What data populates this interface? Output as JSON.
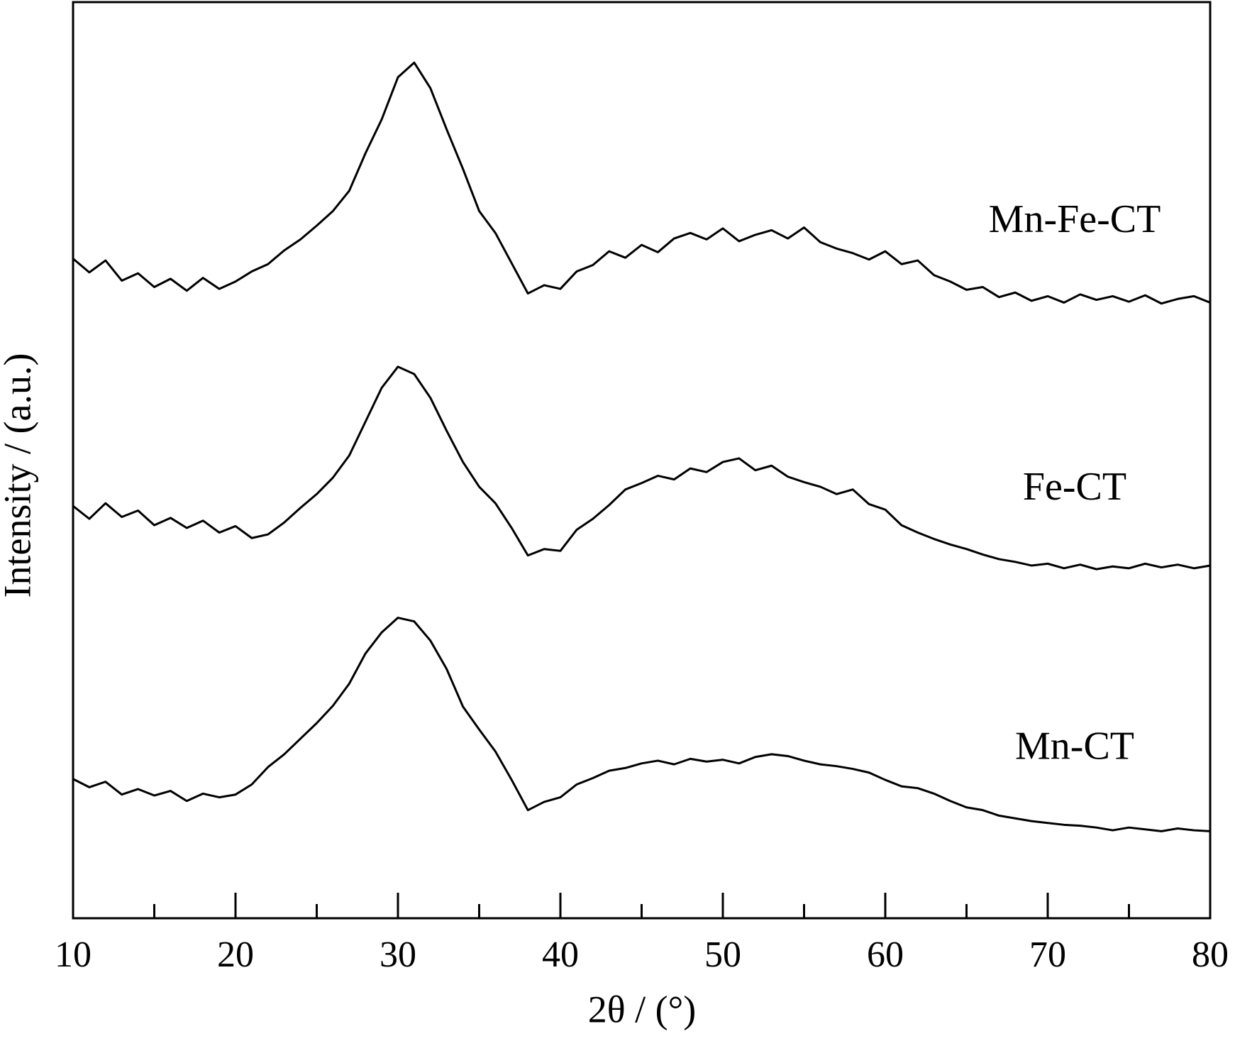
{
  "chart_data": {
    "type": "line",
    "xlabel": "2θ / (°)",
    "ylabel": "Intensity / (a.u.)",
    "xlim": [
      10,
      80
    ],
    "ylim": [
      0,
      100
    ],
    "xticks": [
      10,
      20,
      30,
      40,
      50,
      60,
      70,
      80
    ],
    "xminorticks": [
      15,
      25,
      35,
      45,
      55,
      65,
      75
    ],
    "x": [
      10,
      11,
      12,
      13,
      14,
      15,
      16,
      17,
      18,
      19,
      20,
      21,
      22,
      23,
      24,
      25,
      26,
      27,
      28,
      29,
      30,
      31,
      32,
      33,
      34,
      35,
      36,
      37,
      38,
      39,
      40,
      41,
      42,
      43,
      44,
      45,
      46,
      47,
      48,
      49,
      50,
      51,
      52,
      53,
      54,
      55,
      56,
      57,
      58,
      59,
      60,
      61,
      62,
      63,
      64,
      65,
      66,
      67,
      68,
      69,
      70,
      71,
      72,
      73,
      74,
      75,
      76,
      77,
      78,
      79,
      80
    ],
    "series": [
      {
        "name": "Mn-Fe-CT",
        "color": "#000000",
        "values": [
          72,
          70.5,
          71.8,
          69.6,
          70.4,
          68.9,
          69.8,
          68.5,
          69.9,
          68.7,
          69.5,
          70.6,
          71.4,
          72.9,
          74.1,
          75.6,
          77.2,
          79.4,
          83.5,
          87.2,
          91.8,
          93.4,
          90.6,
          86.1,
          81.8,
          77.2,
          74.8,
          71.5,
          68.2,
          69.1,
          68.7,
          70.6,
          71.3,
          72.8,
          72.1,
          73.5,
          72.7,
          74.2,
          74.8,
          74.1,
          75.3,
          73.9,
          74.6,
          75.1,
          74.2,
          75.4,
          73.8,
          73.1,
          72.6,
          71.9,
          72.8,
          71.4,
          71.8,
          70.2,
          69.5,
          68.6,
          68.9,
          67.8,
          68.3,
          67.4,
          67.9,
          67.2,
          68.1,
          67.5,
          67.9,
          67.3,
          68,
          67.1,
          67.6,
          67.9,
          67.2
        ]
      },
      {
        "name": "Fe-CT",
        "color": "#000000",
        "values": [
          45,
          43.6,
          45.3,
          43.8,
          44.5,
          42.9,
          43.7,
          42.6,
          43.4,
          42.1,
          42.8,
          41.5,
          41.9,
          43.2,
          44.8,
          46.3,
          48.1,
          50.5,
          54.2,
          57.9,
          60.2,
          59.4,
          56.8,
          53.2,
          49.8,
          47.1,
          45.3,
          42.6,
          39.6,
          40.3,
          40.1,
          42.4,
          43.6,
          45.1,
          46.8,
          47.5,
          48.3,
          47.9,
          49.1,
          48.7,
          49.8,
          50.2,
          48.9,
          49.4,
          48.2,
          47.6,
          47.1,
          46.3,
          46.8,
          45.2,
          44.6,
          42.9,
          42.1,
          41.4,
          40.8,
          40.3,
          39.7,
          39.2,
          38.9,
          38.5,
          38.7,
          38.2,
          38.6,
          38.1,
          38.4,
          38.2,
          38.7,
          38.3,
          38.6,
          38.2,
          38.5
        ]
      },
      {
        "name": "Mn-CT",
        "color": "#000000",
        "values": [
          15.2,
          14.3,
          14.9,
          13.5,
          14.1,
          13.4,
          13.9,
          12.8,
          13.6,
          13.2,
          13.5,
          14.6,
          16.5,
          17.9,
          19.6,
          21.3,
          23.2,
          25.6,
          28.9,
          31.2,
          32.8,
          32.4,
          30.3,
          27.2,
          23.1,
          20.6,
          18.2,
          15.1,
          11.8,
          12.7,
          13.2,
          14.6,
          15.3,
          16.1,
          16.4,
          16.9,
          17.2,
          16.8,
          17.4,
          17.1,
          17.3,
          16.9,
          17.6,
          17.9,
          17.7,
          17.2,
          16.8,
          16.6,
          16.3,
          15.9,
          15.1,
          14.4,
          14.2,
          13.6,
          12.8,
          12.1,
          11.8,
          11.2,
          10.9,
          10.6,
          10.4,
          10.2,
          10.1,
          9.9,
          9.6,
          9.9,
          9.7,
          9.5,
          9.8,
          9.6,
          9.5
        ]
      }
    ]
  }
}
